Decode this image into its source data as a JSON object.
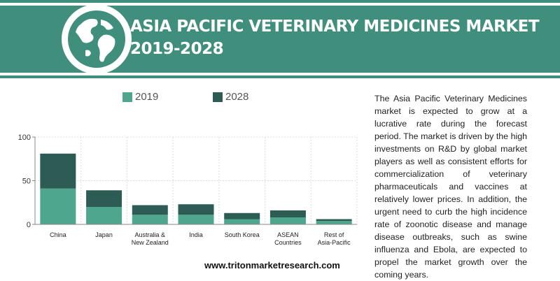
{
  "header": {
    "title_line1": "ASIA PACIFIC VETERINARY MEDICINES MARKET",
    "title_line2": "2019-2028",
    "icon": "globe-icon",
    "band_color": "#3f8f7c"
  },
  "description": "The Asia Pacific Veterinary Medicines market is expected to grow at a lucrative rate during the forecast period. The market is driven by the high investments on R&D by global market players as well as consistent efforts for commercialization of veterinary pharmaceuticals and vaccines at relatively lower prices. In addition, the urgent need to curb the high incidence rate of zoonotic disease and manage disease outbreaks, such as swine influenza and Ebola, are expected to propel the market growth over the coming years.",
  "website": "www.tritonmarketresearch.com",
  "chart_data": {
    "type": "bar",
    "stacked": true,
    "categories": [
      "China",
      "Japan",
      "Australia & New Zealand",
      "India",
      "South Korea",
      "ASEAN Countries",
      "Rest of Asia-Pacific"
    ],
    "category_lines": [
      [
        "China"
      ],
      [
        "Japan"
      ],
      [
        "Australia &",
        "New Zealand"
      ],
      [
        "India"
      ],
      [
        "South Korea"
      ],
      [
        "ASEAN",
        "Countries"
      ],
      [
        "Rest of",
        "Asia-Pacific"
      ]
    ],
    "series": [
      {
        "name": "2019",
        "color": "#4fa68f",
        "values": [
          41,
          20,
          11,
          11,
          6,
          8,
          4
        ]
      },
      {
        "name": "2028",
        "color": "#2d5c55",
        "values": [
          40,
          19,
          11,
          12,
          7,
          8,
          2
        ]
      }
    ],
    "ylim": [
      0,
      100
    ],
    "yticks": [
      0,
      50,
      100
    ],
    "grid": true,
    "legend": "top"
  }
}
